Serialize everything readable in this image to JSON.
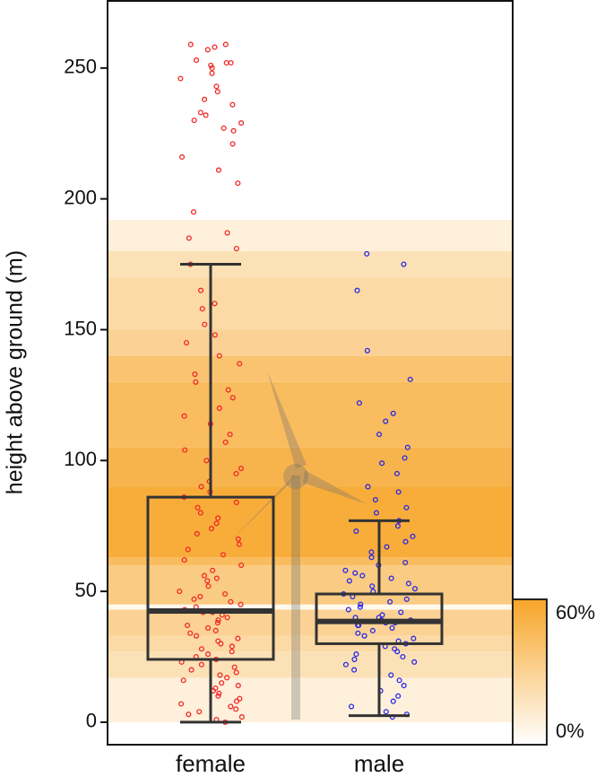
{
  "chart_data": {
    "type": "box",
    "ylabel": "height above ground (m)",
    "ylim": [
      -8.6,
      276
    ],
    "yticks": [
      0,
      50,
      100,
      150,
      200,
      250
    ],
    "band_color": "#f7a528",
    "bands": [
      {
        "from": 0,
        "to": 17,
        "value": 10
      },
      {
        "from": 17,
        "to": 27,
        "value": 20
      },
      {
        "from": 27,
        "to": 33,
        "value": 25
      },
      {
        "from": 33,
        "to": 43,
        "value": 30
      },
      {
        "from": 43,
        "to": 45,
        "value": 5
      },
      {
        "from": 45,
        "to": 60,
        "value": 35
      },
      {
        "from": 60,
        "to": 63,
        "value": 45
      },
      {
        "from": 63,
        "to": 90,
        "value": 55
      },
      {
        "from": 90,
        "to": 105,
        "value": 50
      },
      {
        "from": 105,
        "to": 130,
        "value": 45
      },
      {
        "from": 130,
        "to": 140,
        "value": 40
      },
      {
        "from": 140,
        "to": 150,
        "value": 30
      },
      {
        "from": 150,
        "to": 170,
        "value": 25
      },
      {
        "from": 170,
        "to": 180,
        "value": 20
      },
      {
        "from": 180,
        "to": 192,
        "value": 10
      }
    ],
    "colorbar": {
      "lim": [
        0,
        60
      ],
      "ticks": [
        {
          "value": 60,
          "label": "60%"
        },
        {
          "value": 0,
          "label": "0%"
        }
      ]
    },
    "groups": [
      {
        "name": "female",
        "color": "#f02828",
        "box": {
          "whisker_low": 0,
          "q1": 24,
          "median": 42.5,
          "q3": 86,
          "whisker_high": 175
        },
        "points": [
          259,
          259,
          258,
          257,
          253,
          252,
          252,
          251,
          250,
          248,
          246,
          243,
          241,
          238,
          236,
          233,
          232,
          230,
          229,
          227,
          226,
          221,
          216,
          211,
          206,
          195,
          187,
          185,
          181,
          175,
          165,
          160,
          158,
          152,
          148,
          145,
          140,
          137,
          133,
          130,
          127,
          124,
          120,
          117,
          114,
          110,
          107,
          104,
          100,
          97,
          95,
          92,
          90,
          88,
          86,
          84,
          82,
          80,
          78,
          76,
          74,
          72,
          70,
          68,
          66,
          64,
          62,
          60,
          58,
          56,
          55,
          54,
          52,
          50,
          49,
          48,
          47,
          46,
          45,
          44,
          43,
          42,
          42,
          41,
          40,
          39,
          38,
          37,
          36,
          35,
          34,
          33,
          32,
          31,
          30,
          29,
          28,
          27,
          26,
          25,
          24,
          23,
          22,
          21,
          20,
          19,
          18,
          17,
          16,
          15,
          14,
          13,
          12,
          11,
          10,
          9,
          8,
          7,
          6,
          5,
          4,
          3,
          2,
          1,
          0
        ]
      },
      {
        "name": "male",
        "color": "#2828e6",
        "box": {
          "whisker_low": 2.5,
          "q1": 30,
          "median": 38.5,
          "q3": 49,
          "whisker_high": 77
        },
        "points": [
          179,
          175,
          165,
          142,
          131,
          122,
          118,
          115,
          110,
          105,
          101,
          99,
          95,
          90,
          88,
          85,
          82,
          80,
          77,
          75,
          73,
          71,
          69,
          67,
          65,
          63,
          61,
          60,
          58,
          57,
          56,
          55,
          54,
          53,
          52,
          51,
          50,
          49,
          48,
          47,
          46,
          45,
          44,
          43,
          42,
          41,
          40,
          40,
          39,
          39,
          38,
          38,
          37,
          37,
          36,
          35,
          34,
          33,
          32,
          31,
          30,
          29,
          28,
          27,
          26,
          25,
          24,
          23,
          22,
          20,
          18,
          16,
          14,
          12,
          10,
          8,
          6,
          4,
          3,
          2
        ]
      }
    ]
  }
}
